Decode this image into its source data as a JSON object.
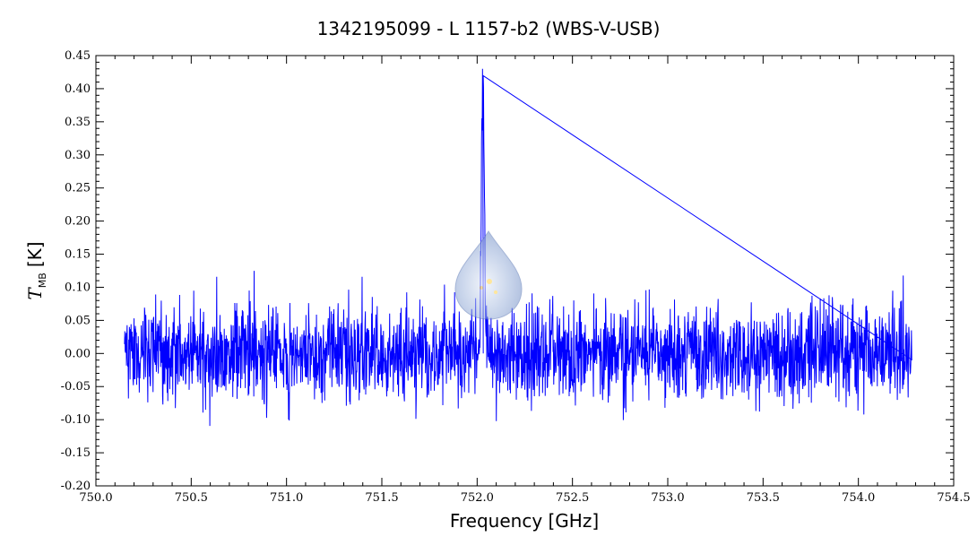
{
  "chart_data": {
    "type": "line",
    "title": "1342195099 - L 1157-b2 (WBS-V-USB)",
    "xlabel": "Frequency [GHz]",
    "ylabel": {
      "symbol": "T",
      "subscript": "MB",
      "unit": "[K]"
    },
    "xlim": [
      750.0,
      754.5
    ],
    "ylim": [
      -0.2,
      0.45
    ],
    "x_ticks": [
      "750.0",
      "750.5",
      "751.0",
      "751.5",
      "752.0",
      "752.5",
      "753.0",
      "753.5",
      "754.0",
      "754.5"
    ],
    "y_ticks": [
      "-0.20",
      "-0.15",
      "-0.10",
      "-0.05",
      "0.00",
      "0.05",
      "0.10",
      "0.15",
      "0.20",
      "0.25",
      "0.30",
      "0.35",
      "0.40",
      "0.45"
    ],
    "grid": false,
    "series": [
      {
        "color": "#0000ff",
        "x_range": [
          750.15,
          754.28
        ],
        "noise_rms": 0.04,
        "baseline": 0.0,
        "peak": {
          "x": 752.03,
          "y": 0.42
        },
        "x": [
          750.15,
          750.3,
          750.52,
          750.8,
          751.0,
          751.25,
          751.5,
          751.8,
          752.0,
          752.02,
          752.03,
          752.04,
          752.06,
          752.3,
          752.5,
          753.0,
          753.35,
          753.5,
          753.7,
          754.0,
          754.2,
          754.28
        ],
        "y": [
          0.0,
          0.02,
          -0.05,
          0.01,
          0.0,
          -0.02,
          0.0,
          0.0,
          0.01,
          0.26,
          0.42,
          0.24,
          0.02,
          0.0,
          0.0,
          0.0,
          0.02,
          0.0,
          0.0,
          -0.02,
          0.0,
          0.0
        ]
      }
    ]
  },
  "watermark": {
    "icon": "herschel-droplet-logo"
  }
}
